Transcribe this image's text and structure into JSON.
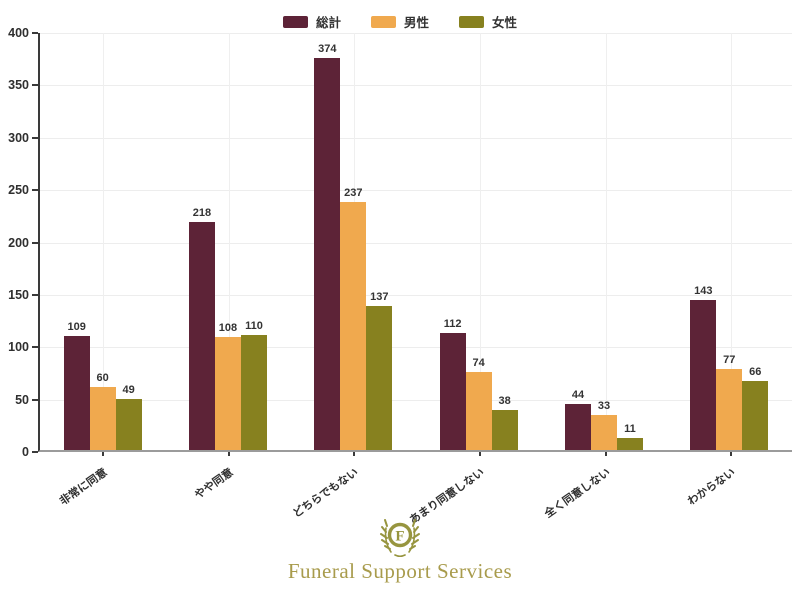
{
  "chart_data": {
    "type": "bar",
    "title": "",
    "xlabel": "",
    "ylabel": "",
    "categories": [
      "非常に同意",
      "やや同意",
      "どちらでもない",
      "あまり同意しない",
      "全く同意しない",
      "わからない"
    ],
    "series": [
      {
        "name": "総計",
        "color": "#5d2337",
        "values": [
          109,
          218,
          374,
          112,
          44,
          143
        ]
      },
      {
        "name": "男性",
        "color": "#f0a94e",
        "values": [
          60,
          108,
          237,
          74,
          33,
          77
        ]
      },
      {
        "name": "女性",
        "color": "#87811f",
        "values": [
          49,
          110,
          137,
          38,
          11,
          66
        ]
      }
    ],
    "ylim": [
      0,
      400
    ],
    "ytick_step": 50,
    "grid": true,
    "legend_position": "top-center",
    "value_labels": true
  },
  "footer": {
    "brand": "Funeral Support Services",
    "logo_letter": "F",
    "logo_color": "#97953f",
    "text_color": "#a89b4c"
  }
}
